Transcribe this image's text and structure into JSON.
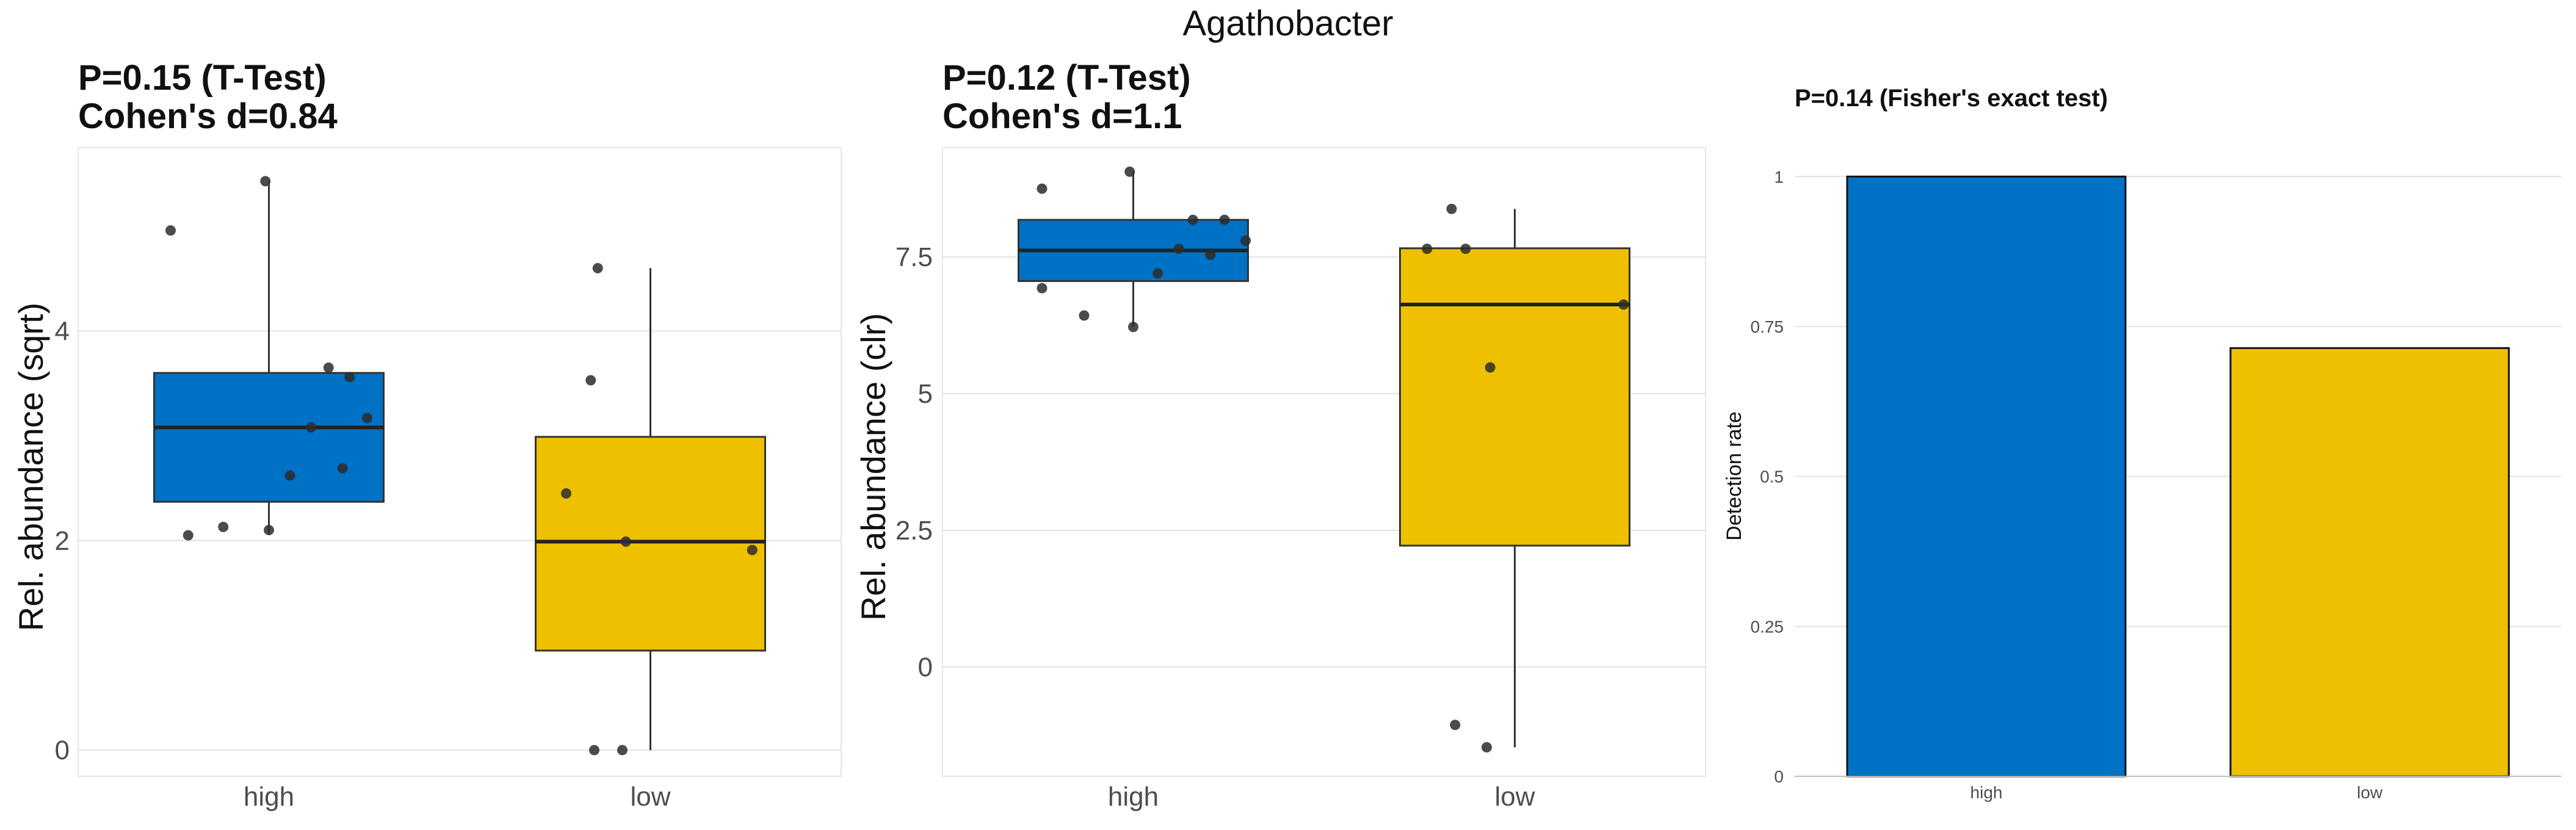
{
  "figure_title": "Agathobacter",
  "colors": {
    "high": "#0072C6",
    "low": "#EFC000"
  },
  "chart_data": [
    {
      "type": "box",
      "title_line1": "P=0.15 (T-Test)",
      "title_line2": "Cohen's d=0.84",
      "xlabel": "",
      "ylabel": "Rel. abundance (sqrt)",
      "ylim": [
        -0.25,
        5.75
      ],
      "yticks": [
        0,
        2,
        4
      ],
      "ytick_labels": [
        "0",
        "2",
        "4"
      ],
      "categories": [
        "high",
        "low"
      ],
      "boxes": [
        {
          "name": "high",
          "q1": 2.37,
          "median": 3.08,
          "q3": 3.6,
          "whisker_low": 2.06,
          "whisker_high": 5.43
        },
        {
          "name": "low",
          "q1": 0.95,
          "median": 1.99,
          "q3": 2.99,
          "whisker_low": 0.0,
          "whisker_high": 4.6
        }
      ],
      "points": [
        {
          "group": "high",
          "jitter": -0.28,
          "y": 4.96
        },
        {
          "group": "high",
          "jitter": -0.01,
          "y": 5.43
        },
        {
          "group": "high",
          "jitter": 0.17,
          "y": 3.65
        },
        {
          "group": "high",
          "jitter": 0.23,
          "y": 3.56
        },
        {
          "group": "high",
          "jitter": 0.28,
          "y": 3.17
        },
        {
          "group": "high",
          "jitter": 0.12,
          "y": 3.08
        },
        {
          "group": "high",
          "jitter": 0.21,
          "y": 2.69
        },
        {
          "group": "high",
          "jitter": 0.06,
          "y": 2.62
        },
        {
          "group": "high",
          "jitter": -0.13,
          "y": 2.13
        },
        {
          "group": "high",
          "jitter": -0.23,
          "y": 2.05
        },
        {
          "group": "high",
          "jitter": 0.0,
          "y": 2.1
        },
        {
          "group": "low",
          "jitter": -0.15,
          "y": 4.6
        },
        {
          "group": "low",
          "jitter": -0.17,
          "y": 3.53
        },
        {
          "group": "low",
          "jitter": -0.24,
          "y": 2.45
        },
        {
          "group": "low",
          "jitter": -0.07,
          "y": 1.99
        },
        {
          "group": "low",
          "jitter": 0.29,
          "y": 1.91
        },
        {
          "group": "low",
          "jitter": -0.16,
          "y": 0.0
        },
        {
          "group": "low",
          "jitter": -0.08,
          "y": 0.0
        }
      ]
    },
    {
      "type": "box",
      "title_line1": "P=0.12 (T-Test)",
      "title_line2": "Cohen's d=1.1",
      "xlabel": "",
      "ylabel": "Rel. abundance (clr)",
      "ylim": [
        -2.0,
        9.5
      ],
      "yticks": [
        0,
        2.5,
        5,
        7.5
      ],
      "ytick_labels": [
        "0",
        "2.5",
        "5",
        "7.5"
      ],
      "categories": [
        "high",
        "low"
      ],
      "boxes": [
        {
          "name": "high",
          "q1": 7.06,
          "median": 7.62,
          "q3": 8.18,
          "whisker_low": 6.22,
          "whisker_high": 9.06
        },
        {
          "name": "low",
          "q1": 2.22,
          "median": 6.63,
          "q3": 7.66,
          "whisker_low": -1.47,
          "whisker_high": 8.38
        }
      ],
      "points": [
        {
          "group": "high",
          "jitter": -0.26,
          "y": 8.75
        },
        {
          "group": "high",
          "jitter": -0.01,
          "y": 9.06
        },
        {
          "group": "high",
          "jitter": 0.17,
          "y": 8.18
        },
        {
          "group": "high",
          "jitter": 0.26,
          "y": 8.18
        },
        {
          "group": "high",
          "jitter": 0.32,
          "y": 7.8
        },
        {
          "group": "high",
          "jitter": 0.13,
          "y": 7.65
        },
        {
          "group": "high",
          "jitter": 0.22,
          "y": 7.54
        },
        {
          "group": "high",
          "jitter": 0.07,
          "y": 7.2
        },
        {
          "group": "high",
          "jitter": -0.26,
          "y": 6.93
        },
        {
          "group": "high",
          "jitter": -0.14,
          "y": 6.43
        },
        {
          "group": "high",
          "jitter": 0.0,
          "y": 6.22
        },
        {
          "group": "low",
          "jitter": -0.18,
          "y": 8.38
        },
        {
          "group": "low",
          "jitter": -0.25,
          "y": 7.65
        },
        {
          "group": "low",
          "jitter": -0.14,
          "y": 7.65
        },
        {
          "group": "low",
          "jitter": 0.31,
          "y": 6.63
        },
        {
          "group": "low",
          "jitter": -0.07,
          "y": 5.48
        },
        {
          "group": "low",
          "jitter": -0.17,
          "y": -1.06
        },
        {
          "group": "low",
          "jitter": -0.08,
          "y": -1.47
        }
      ]
    },
    {
      "type": "bar",
      "title": "P=0.14 (Fisher's exact test)",
      "xlabel": "",
      "ylabel": "Detection rate",
      "ylim": [
        0,
        1.04
      ],
      "yticks": [
        0,
        0.25,
        0.5,
        0.75,
        1
      ],
      "ytick_labels": [
        "0",
        "0.25",
        "0.5",
        "0.75",
        "1"
      ],
      "categories": [
        "high",
        "low"
      ],
      "values": [
        1.0,
        0.714
      ]
    }
  ]
}
